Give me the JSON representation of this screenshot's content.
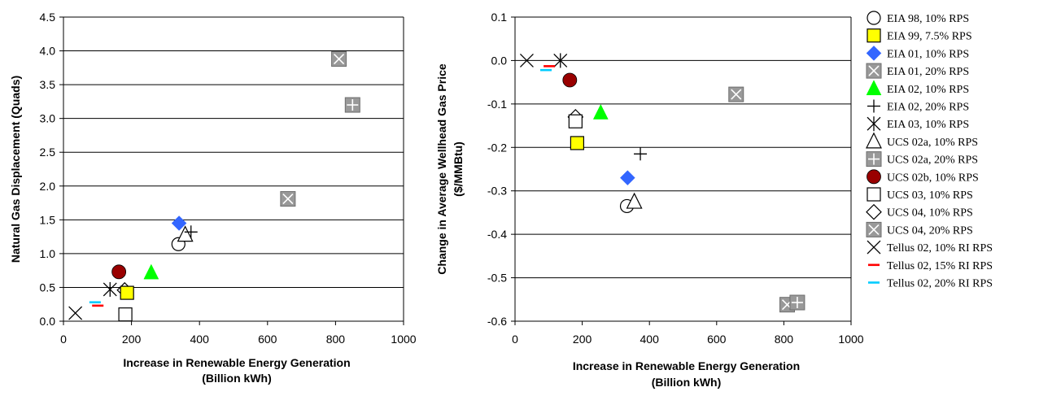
{
  "chart_data": [
    {
      "type": "scatter",
      "xlabel_lines": [
        "Increase in Renewable Energy Generation",
        "(Billion kWh)"
      ],
      "ylabel_lines": [
        "Natural Gas Displacement (Quads)"
      ],
      "xlim": [
        0,
        1000
      ],
      "ylim": [
        0,
        4.5
      ],
      "x_ticks": [
        "0",
        "200",
        "400",
        "600",
        "800",
        "1000"
      ],
      "y_ticks": [
        "0.0",
        "0.5",
        "1.0",
        "1.5",
        "2.0",
        "2.5",
        "3.0",
        "3.5",
        "4.0",
        "4.5"
      ],
      "grid": "horizontal",
      "points": [
        {
          "series": "EIA 98, 10% RPS",
          "x": 338,
          "y": 1.14
        },
        {
          "series": "EIA 01, 10% RPS",
          "x": 340,
          "y": 1.45
        },
        {
          "series": "UCS 02a, 10% RPS",
          "x": 358,
          "y": 1.28
        },
        {
          "series": "EIA 02, 20% RPS",
          "x": 375,
          "y": 1.32
        },
        {
          "series": "EIA 02, 10% RPS",
          "x": 258,
          "y": 0.72
        },
        {
          "series": "UCS 02b, 10% RPS",
          "x": 163,
          "y": 0.73
        },
        {
          "series": "EIA 03, 10% RPS",
          "x": 137,
          "y": 0.47
        },
        {
          "series": "UCS 04, 10% RPS",
          "x": 180,
          "y": 0.46
        },
        {
          "series": "EIA 99, 7.5% RPS",
          "x": 187,
          "y": 0.42
        },
        {
          "series": "UCS 03, 10% RPS",
          "x": 182,
          "y": 0.1
        },
        {
          "series": "Tellus 02, 10% RI RPS",
          "x": 35,
          "y": 0.12
        },
        {
          "series": "Tellus 02, 15% RI RPS",
          "x": 101,
          "y": 0.23
        },
        {
          "series": "Tellus 02, 20% RI RPS",
          "x": 93,
          "y": 0.28
        },
        {
          "series": "UCS 04, 20% RPS",
          "x": 660,
          "y": 1.81
        },
        {
          "series": "EIA 01, 20% RPS",
          "x": 810,
          "y": 3.88
        },
        {
          "series": "UCS 02a, 20% RPS",
          "x": 850,
          "y": 3.2
        }
      ]
    },
    {
      "type": "scatter",
      "xlabel_lines": [
        "Increase in Renewable Energy Generation",
        "(Billion kWh)"
      ],
      "ylabel_lines": [
        "Change in Average Wellhead Gas Price",
        "($/MMBtu)"
      ],
      "xlim": [
        0,
        1000
      ],
      "ylim": [
        -0.6,
        0.1
      ],
      "x_ticks": [
        "0",
        "200",
        "400",
        "600",
        "800",
        "1000"
      ],
      "y_ticks": [
        "-0.6",
        "-0.5",
        "-0.4",
        "-0.3",
        "-0.2",
        "-0.1",
        "0.0",
        "0.1"
      ],
      "grid": "horizontal",
      "points": [
        {
          "series": "Tellus 02, 10% RI RPS",
          "x": 35,
          "y": 0.0
        },
        {
          "series": "EIA 03, 10% RPS",
          "x": 135,
          "y": 0.0
        },
        {
          "series": "Tellus 02, 15% RI RPS",
          "x": 102,
          "y": -0.013
        },
        {
          "series": "Tellus 02, 20% RI RPS",
          "x": 92,
          "y": -0.022
        },
        {
          "series": "UCS 02b, 10% RPS",
          "x": 163,
          "y": -0.045
        },
        {
          "series": "UCS 04, 10% RPS",
          "x": 180,
          "y": -0.13
        },
        {
          "series": "UCS 03, 10% RPS",
          "x": 180,
          "y": -0.14
        },
        {
          "series": "EIA 02, 10% RPS",
          "x": 255,
          "y": -0.12
        },
        {
          "series": "EIA 99, 7.5% RPS",
          "x": 185,
          "y": -0.19
        },
        {
          "series": "EIA 02, 20% RPS",
          "x": 373,
          "y": -0.215
        },
        {
          "series": "EIA 01, 10% RPS",
          "x": 335,
          "y": -0.27
        },
        {
          "series": "EIA 98, 10% RPS",
          "x": 333,
          "y": -0.335
        },
        {
          "series": "UCS 02a, 10% RPS",
          "x": 355,
          "y": -0.325
        },
        {
          "series": "UCS 04, 20% RPS",
          "x": 658,
          "y": -0.078
        },
        {
          "series": "EIA 01, 20% RPS",
          "x": 810,
          "y": -0.562
        },
        {
          "series": "UCS 02a, 20% RPS",
          "x": 840,
          "y": -0.557
        }
      ]
    }
  ],
  "legend": {
    "position": "right",
    "items": [
      {
        "name": "EIA 98, 10% RPS",
        "marker": "open-circle",
        "color": "#000000"
      },
      {
        "name": "EIA 99, 7.5% RPS",
        "marker": "square",
        "color": "#FFFF00"
      },
      {
        "name": "EIA 01, 10% RPS",
        "marker": "diamond",
        "color": "#3366FF"
      },
      {
        "name": "EIA 01, 20% RPS",
        "marker": "gray-square-x",
        "color": "#999999"
      },
      {
        "name": "EIA 02, 10% RPS",
        "marker": "triangle",
        "color": "#00FF00"
      },
      {
        "name": "EIA 02, 20% RPS",
        "marker": "plus",
        "color": "#000000"
      },
      {
        "name": "EIA 03, 10% RPS",
        "marker": "asterisk",
        "color": "#000000"
      },
      {
        "name": "UCS 02a, 10% RPS",
        "marker": "open-triangle",
        "color": "#000000"
      },
      {
        "name": "UCS 02a, 20% RPS",
        "marker": "gray-square-plus",
        "color": "#999999"
      },
      {
        "name": "UCS 02b, 10% RPS",
        "marker": "circle",
        "color": "#990000"
      },
      {
        "name": "UCS 03, 10% RPS",
        "marker": "open-square",
        "color": "#000000"
      },
      {
        "name": "UCS 04, 10% RPS",
        "marker": "open-diamond",
        "color": "#000000"
      },
      {
        "name": "UCS 04, 20% RPS",
        "marker": "gray-square-x",
        "color": "#999999"
      },
      {
        "name": "Tellus 02, 10% RI RPS",
        "marker": "x",
        "color": "#000000"
      },
      {
        "name": "Tellus 02, 15% RI RPS",
        "marker": "dash",
        "color": "#FF0000"
      },
      {
        "name": "Tellus 02, 20% RI RPS",
        "marker": "dash",
        "color": "#00CCFF"
      }
    ]
  }
}
